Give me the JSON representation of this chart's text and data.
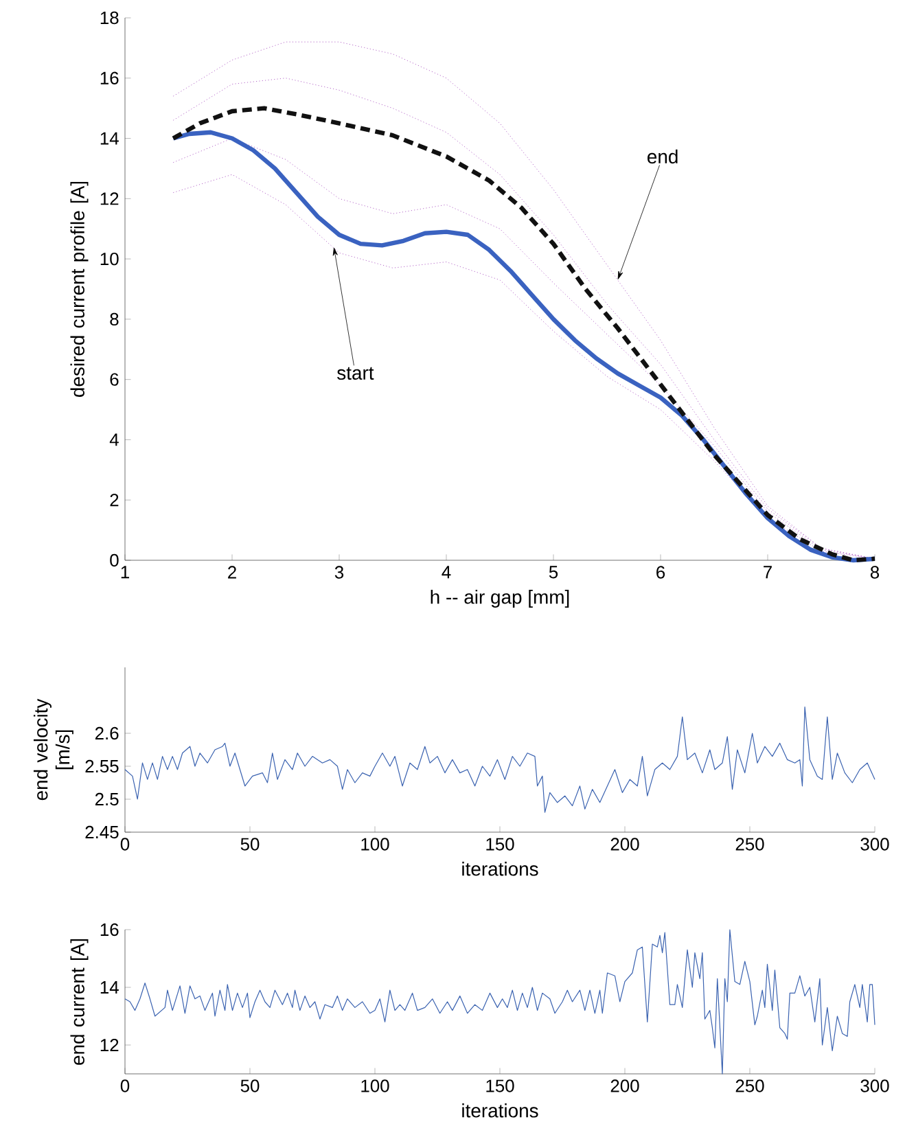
{
  "chart_data": [
    {
      "type": "line",
      "xlabel": "h -- air gap [mm]",
      "ylabel": "desired current profile [A]",
      "xlim": [
        1,
        8
      ],
      "ylim": [
        0,
        18
      ],
      "xticks": [
        1,
        2,
        3,
        4,
        5,
        6,
        7,
        8
      ],
      "yticks": [
        0,
        2,
        4,
        6,
        8,
        10,
        12,
        14,
        16,
        18
      ],
      "series": [
        {
          "color": "#b466c8",
          "line_style": "dotted",
          "x": [
            1.45,
            2.0,
            2.5,
            3.0,
            3.5,
            4.0,
            4.5,
            5.0,
            5.5,
            6.0,
            6.5,
            7.0,
            7.5,
            8.0
          ],
          "values": [
            15.4,
            16.6,
            17.2,
            17.2,
            16.8,
            16.0,
            14.5,
            12.3,
            9.8,
            7.3,
            4.4,
            1.8,
            0.4,
            0.05
          ]
        },
        {
          "color": "#b466c8",
          "line_style": "dotted",
          "x": [
            1.45,
            2.0,
            2.5,
            3.0,
            3.5,
            4.0,
            4.5,
            5.0,
            5.5,
            6.0,
            6.5,
            7.0,
            7.5,
            8.0
          ],
          "values": [
            14.6,
            15.8,
            16.0,
            15.6,
            15.0,
            14.2,
            12.8,
            10.8,
            8.5,
            6.5,
            4.0,
            1.7,
            0.4,
            0.05
          ]
        },
        {
          "color": "#b466c8",
          "line_style": "dotted",
          "x": [
            1.45,
            2.0,
            2.5,
            3.0,
            3.5,
            4.0,
            4.5,
            5.0,
            5.5,
            6.0,
            6.5,
            7.0,
            7.5,
            8.0
          ],
          "values": [
            13.2,
            14.0,
            13.3,
            12.0,
            11.5,
            11.8,
            11.0,
            9.2,
            7.5,
            5.8,
            3.8,
            1.6,
            0.35,
            0.05
          ]
        },
        {
          "color": "#b466c8",
          "line_style": "dotted",
          "x": [
            1.45,
            2.0,
            2.5,
            3.0,
            3.5,
            4.0,
            4.5,
            5.0,
            5.5,
            6.0,
            6.5,
            7.0,
            7.5,
            8.0
          ],
          "values": [
            12.2,
            12.8,
            11.8,
            10.2,
            9.7,
            9.9,
            9.3,
            7.6,
            6.1,
            5.0,
            3.3,
            1.4,
            0.3,
            0.05
          ]
        },
        {
          "color": "#3a62c0",
          "line_style": "solid",
          "x": [
            1.45,
            1.6,
            1.8,
            2.0,
            2.2,
            2.4,
            2.6,
            2.8,
            3.0,
            3.2,
            3.4,
            3.6,
            3.8,
            4.0,
            4.2,
            4.4,
            4.6,
            4.8,
            5.0,
            5.2,
            5.4,
            5.6,
            5.8,
            6.0,
            6.2,
            6.4,
            6.6,
            6.8,
            7.0,
            7.2,
            7.4,
            7.6,
            7.8,
            8.0
          ],
          "values": [
            14.0,
            14.15,
            14.2,
            14.0,
            13.6,
            13.0,
            12.2,
            11.4,
            10.8,
            10.5,
            10.45,
            10.6,
            10.85,
            10.9,
            10.8,
            10.3,
            9.6,
            8.8,
            8.0,
            7.3,
            6.7,
            6.2,
            5.8,
            5.4,
            4.8,
            4.0,
            3.1,
            2.2,
            1.4,
            0.8,
            0.35,
            0.1,
            0.0,
            0.05
          ]
        },
        {
          "color": "#111111",
          "line_style": "dashed",
          "x": [
            1.45,
            1.7,
            2.0,
            2.3,
            2.6,
            3.0,
            3.5,
            4.0,
            4.4,
            4.7,
            5.0,
            5.3,
            5.6,
            5.9,
            6.2,
            6.5,
            6.8,
            7.0,
            7.3,
            7.6,
            7.8,
            8.0
          ],
          "values": [
            14.0,
            14.5,
            14.9,
            15.0,
            14.8,
            14.5,
            14.1,
            13.4,
            12.6,
            11.7,
            10.5,
            9.0,
            7.7,
            6.3,
            4.9,
            3.5,
            2.3,
            1.5,
            0.7,
            0.2,
            0.0,
            0.05
          ]
        }
      ],
      "annotations": [
        {
          "text": "start",
          "x": 2.95,
          "y": 10.4
        },
        {
          "text": "end",
          "x": 5.6,
          "y": 9.3
        }
      ]
    },
    {
      "type": "line",
      "xlabel": "iterations",
      "ylabel": "end velocity [m/s]",
      "xlim": [
        0,
        300
      ],
      "ylim": [
        2.45,
        2.7
      ],
      "xticks": [
        0,
        50,
        100,
        150,
        200,
        250,
        300
      ],
      "yticks": [
        2.45,
        2.5,
        2.55,
        2.6
      ],
      "series": [
        {
          "color": "#3a62b0",
          "x": [
            0,
            3,
            5,
            7,
            9,
            11,
            13,
            15,
            17,
            19,
            21,
            23,
            26,
            28,
            30,
            33,
            36,
            39,
            40,
            42,
            44,
            46,
            48,
            51,
            55,
            57,
            59,
            61,
            64,
            67,
            69,
            72,
            75,
            79,
            82,
            85,
            87,
            89,
            92,
            95,
            98,
            100,
            103,
            106,
            108,
            111,
            114,
            117,
            120,
            122,
            125,
            128,
            131,
            134,
            137,
            140,
            143,
            146,
            149,
            152,
            155,
            158,
            161,
            164,
            165,
            167,
            168,
            170,
            173,
            176,
            179,
            182,
            184,
            187,
            190,
            193,
            196,
            199,
            202,
            205,
            207,
            209,
            212,
            215,
            218,
            221,
            223,
            225,
            228,
            231,
            234,
            236,
            239,
            241,
            243,
            245,
            248,
            251,
            253,
            256,
            259,
            262,
            265,
            268,
            270,
            271,
            272,
            274,
            277,
            279,
            281,
            283,
            285,
            288,
            291,
            294,
            297,
            300
          ],
          "values": [
            2.545,
            2.535,
            2.5,
            2.555,
            2.53,
            2.555,
            2.53,
            2.565,
            2.545,
            2.565,
            2.545,
            2.57,
            2.58,
            2.55,
            2.57,
            2.555,
            2.575,
            2.58,
            2.585,
            2.55,
            2.57,
            2.545,
            2.52,
            2.535,
            2.54,
            2.525,
            2.57,
            2.53,
            2.56,
            2.545,
            2.57,
            2.55,
            2.565,
            2.555,
            2.56,
            2.55,
            2.515,
            2.545,
            2.525,
            2.54,
            2.535,
            2.55,
            2.57,
            2.55,
            2.565,
            2.52,
            2.555,
            2.545,
            2.58,
            2.555,
            2.565,
            2.54,
            2.56,
            2.54,
            2.545,
            2.52,
            2.55,
            2.535,
            2.56,
            2.53,
            2.565,
            2.55,
            2.57,
            2.565,
            2.52,
            2.535,
            2.48,
            2.51,
            2.495,
            2.505,
            2.49,
            2.52,
            2.485,
            2.515,
            2.495,
            2.52,
            2.545,
            2.51,
            2.53,
            2.52,
            2.565,
            2.505,
            2.545,
            2.555,
            2.545,
            2.565,
            2.625,
            2.56,
            2.57,
            2.54,
            2.575,
            2.545,
            2.555,
            2.595,
            2.515,
            2.575,
            2.54,
            2.6,
            2.555,
            2.58,
            2.565,
            2.585,
            2.56,
            2.555,
            2.56,
            2.52,
            2.64,
            2.56,
            2.535,
            2.53,
            2.625,
            2.53,
            2.57,
            2.54,
            2.525,
            2.545,
            2.555,
            2.53
          ]
        }
      ]
    },
    {
      "type": "line",
      "xlabel": "iterations",
      "ylabel": "end current [A]",
      "xlim": [
        0,
        300
      ],
      "ylim": [
        11,
        16
      ],
      "xticks": [
        0,
        50,
        100,
        150,
        200,
        250,
        300
      ],
      "yticks": [
        12,
        14,
        16
      ],
      "series": [
        {
          "color": "#3a62b0",
          "x": [
            0,
            2,
            4,
            6,
            8,
            10,
            12,
            16,
            17,
            19,
            22,
            24,
            26,
            28,
            30,
            32,
            35,
            36,
            38,
            40,
            41,
            43,
            45,
            47,
            49,
            50,
            52,
            54,
            56,
            58,
            60,
            63,
            65,
            67,
            68,
            70,
            72,
            74,
            76,
            78,
            80,
            83,
            85,
            87,
            89,
            92,
            95,
            98,
            100,
            102,
            104,
            106,
            108,
            110,
            112,
            115,
            117,
            120,
            123,
            126,
            129,
            131,
            134,
            137,
            140,
            143,
            146,
            149,
            151,
            153,
            155,
            157,
            159,
            161,
            163,
            165,
            167,
            170,
            172,
            175,
            177,
            179,
            182,
            184,
            186,
            188,
            190,
            191,
            193,
            196,
            198,
            200,
            203,
            205,
            207,
            209,
            211,
            213,
            214,
            215,
            216,
            218,
            220,
            221,
            223,
            225,
            227,
            228,
            230,
            231,
            232,
            234,
            235,
            236,
            237,
            239,
            240,
            241,
            242,
            244,
            246,
            248,
            250,
            252,
            253,
            255,
            256,
            257,
            259,
            260,
            262,
            264,
            265,
            266,
            268,
            270,
            272,
            274,
            276,
            278,
            279,
            281,
            283,
            285,
            287,
            289,
            290,
            292,
            294,
            295,
            297,
            298,
            299,
            300
          ],
          "values": [
            13.6,
            13.5,
            13.2,
            13.6,
            14.15,
            13.6,
            13.0,
            13.3,
            13.9,
            13.2,
            14.05,
            13.1,
            14.05,
            13.6,
            13.7,
            13.2,
            13.8,
            13.0,
            13.9,
            13.2,
            14.1,
            13.2,
            13.8,
            13.3,
            13.8,
            12.95,
            13.5,
            13.9,
            13.5,
            13.3,
            13.9,
            13.4,
            13.8,
            13.3,
            13.9,
            13.2,
            13.7,
            13.3,
            13.5,
            12.9,
            13.4,
            13.3,
            13.7,
            13.2,
            13.6,
            13.3,
            13.5,
            13.1,
            13.2,
            13.6,
            12.8,
            13.9,
            13.2,
            13.4,
            13.2,
            13.8,
            13.2,
            13.3,
            13.6,
            13.1,
            13.5,
            13.2,
            13.7,
            13.1,
            13.4,
            13.2,
            13.8,
            13.3,
            13.6,
            13.3,
            13.9,
            13.2,
            13.8,
            13.3,
            14.0,
            13.2,
            13.8,
            13.6,
            13.1,
            13.5,
            13.9,
            13.5,
            13.9,
            13.2,
            13.9,
            13.1,
            13.9,
            13.1,
            14.5,
            14.4,
            13.5,
            14.2,
            14.5,
            15.3,
            15.4,
            12.8,
            15.5,
            15.4,
            15.8,
            15.2,
            15.9,
            13.4,
            13.4,
            14.1,
            13.3,
            15.3,
            14.0,
            15.2,
            14.3,
            15.2,
            12.9,
            13.2,
            12.6,
            11.9,
            14.3,
            11.0,
            14.3,
            13.5,
            16.0,
            14.2,
            14.1,
            14.9,
            14.2,
            12.7,
            13.0,
            13.9,
            13.3,
            14.8,
            13.2,
            14.6,
            12.6,
            12.4,
            12.2,
            13.8,
            13.8,
            14.4,
            13.7,
            14.0,
            12.8,
            14.3,
            12.0,
            13.3,
            11.8,
            13.0,
            12.4,
            12.3,
            13.5,
            14.1,
            13.3,
            14.1,
            12.8,
            14.1,
            14.1,
            12.7
          ]
        }
      ]
    }
  ]
}
